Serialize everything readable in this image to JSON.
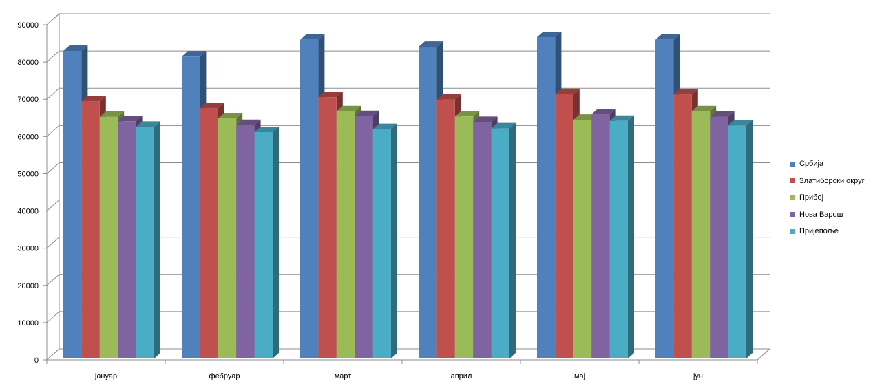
{
  "chart_data": {
    "type": "bar",
    "style": "3d-clustered-column",
    "categories": [
      "јануар",
      "фебруар",
      "март",
      "април",
      "мај",
      "јун"
    ],
    "series": [
      {
        "name": "Србија",
        "color": "#4f81bd",
        "values": [
          82600,
          81100,
          85600,
          83700,
          86300,
          85600
        ]
      },
      {
        "name": "Златиборски округ",
        "color": "#c0504d",
        "values": [
          69100,
          67200,
          70200,
          69500,
          71000,
          70900
        ]
      },
      {
        "name": "Прибој",
        "color": "#9bbb59",
        "values": [
          64900,
          64500,
          66400,
          65000,
          64100,
          66400
        ]
      },
      {
        "name": "Нова Варош",
        "color": "#8064a2",
        "values": [
          63700,
          62700,
          65100,
          63500,
          65600,
          64900
        ]
      },
      {
        "name": "Пријепоље",
        "color": "#4bacc6",
        "values": [
          62200,
          60800,
          61600,
          61800,
          63800,
          62600
        ]
      }
    ],
    "ylim": [
      0,
      90000
    ],
    "yticks": [
      0,
      10000,
      20000,
      30000,
      40000,
      50000,
      60000,
      70000,
      80000,
      90000
    ],
    "grid": true,
    "legend_position": "right"
  }
}
